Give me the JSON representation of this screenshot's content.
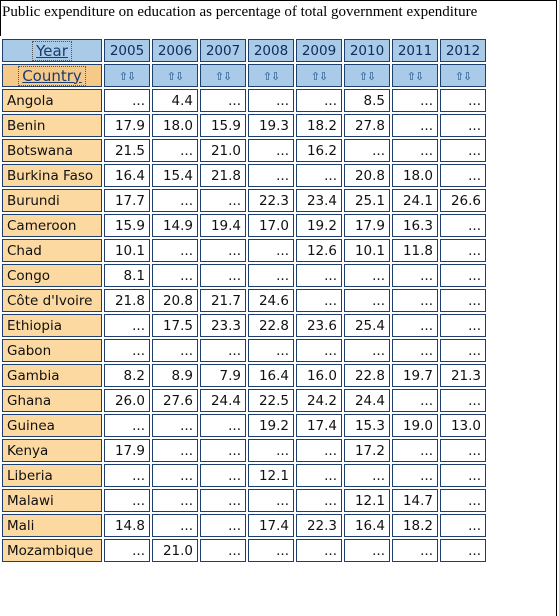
{
  "title": "Public expenditure on education as percentage of total government expenditure",
  "header": {
    "year_label": "Year",
    "country_label": "Country",
    "sort_glyph": "⇧⇩",
    "years": [
      "2005",
      "2006",
      "2007",
      "2008",
      "2009",
      "2010",
      "2011",
      "2012"
    ]
  },
  "rows": [
    {
      "country": "Angola",
      "values": [
        "...",
        "4.4",
        "...",
        "...",
        "...",
        "8.5",
        "...",
        "..."
      ]
    },
    {
      "country": "Benin",
      "values": [
        "17.9",
        "18.0",
        "15.9",
        "19.3",
        "18.2",
        "27.8",
        "...",
        "..."
      ]
    },
    {
      "country": "Botswana",
      "values": [
        "21.5",
        "...",
        "21.0",
        "...",
        "16.2",
        "...",
        "...",
        "..."
      ]
    },
    {
      "country": "Burkina Faso",
      "values": [
        "16.4",
        "15.4",
        "21.8",
        "...",
        "...",
        "20.8",
        "18.0",
        "..."
      ]
    },
    {
      "country": "Burundi",
      "values": [
        "17.7",
        "...",
        "...",
        "22.3",
        "23.4",
        "25.1",
        "24.1",
        "26.6"
      ]
    },
    {
      "country": "Cameroon",
      "values": [
        "15.9",
        "14.9",
        "19.4",
        "17.0",
        "19.2",
        "17.9",
        "16.3",
        "..."
      ]
    },
    {
      "country": "Chad",
      "values": [
        "10.1",
        "...",
        "...",
        "...",
        "12.6",
        "10.1",
        "11.8",
        "..."
      ]
    },
    {
      "country": "Congo",
      "values": [
        "8.1",
        "...",
        "...",
        "...",
        "...",
        "...",
        "...",
        "..."
      ]
    },
    {
      "country": "Côte d'Ivoire",
      "values": [
        "21.8",
        "20.8",
        "21.7",
        "24.6",
        "...",
        "...",
        "...",
        "..."
      ]
    },
    {
      "country": "Ethiopia",
      "values": [
        "...",
        "17.5",
        "23.3",
        "22.8",
        "23.6",
        "25.4",
        "...",
        "..."
      ]
    },
    {
      "country": "Gabon",
      "values": [
        "...",
        "...",
        "...",
        "...",
        "...",
        "...",
        "...",
        "..."
      ]
    },
    {
      "country": "Gambia",
      "values": [
        "8.2",
        "8.9",
        "7.9",
        "16.4",
        "16.0",
        "22.8",
        "19.7",
        "21.3"
      ]
    },
    {
      "country": "Ghana",
      "values": [
        "26.0",
        "27.6",
        "24.4",
        "22.5",
        "24.2",
        "24.4",
        "...",
        "..."
      ]
    },
    {
      "country": "Guinea",
      "values": [
        "...",
        "...",
        "...",
        "19.2",
        "17.4",
        "15.3",
        "19.0",
        "13.0"
      ]
    },
    {
      "country": "Kenya",
      "values": [
        "17.9",
        "...",
        "...",
        "...",
        "...",
        "17.2",
        "...",
        "..."
      ]
    },
    {
      "country": "Liberia",
      "values": [
        "...",
        "...",
        "...",
        "12.1",
        "...",
        "...",
        "...",
        "..."
      ]
    },
    {
      "country": "Malawi",
      "values": [
        "...",
        "...",
        "...",
        "...",
        "...",
        "12.1",
        "14.7",
        "..."
      ]
    },
    {
      "country": "Mali",
      "values": [
        "14.8",
        "...",
        "...",
        "17.4",
        "22.3",
        "16.4",
        "18.2",
        "..."
      ]
    },
    {
      "country": "Mozambique",
      "values": [
        "...",
        "21.0",
        "...",
        "...",
        "...",
        "...",
        "...",
        "..."
      ]
    }
  ]
}
